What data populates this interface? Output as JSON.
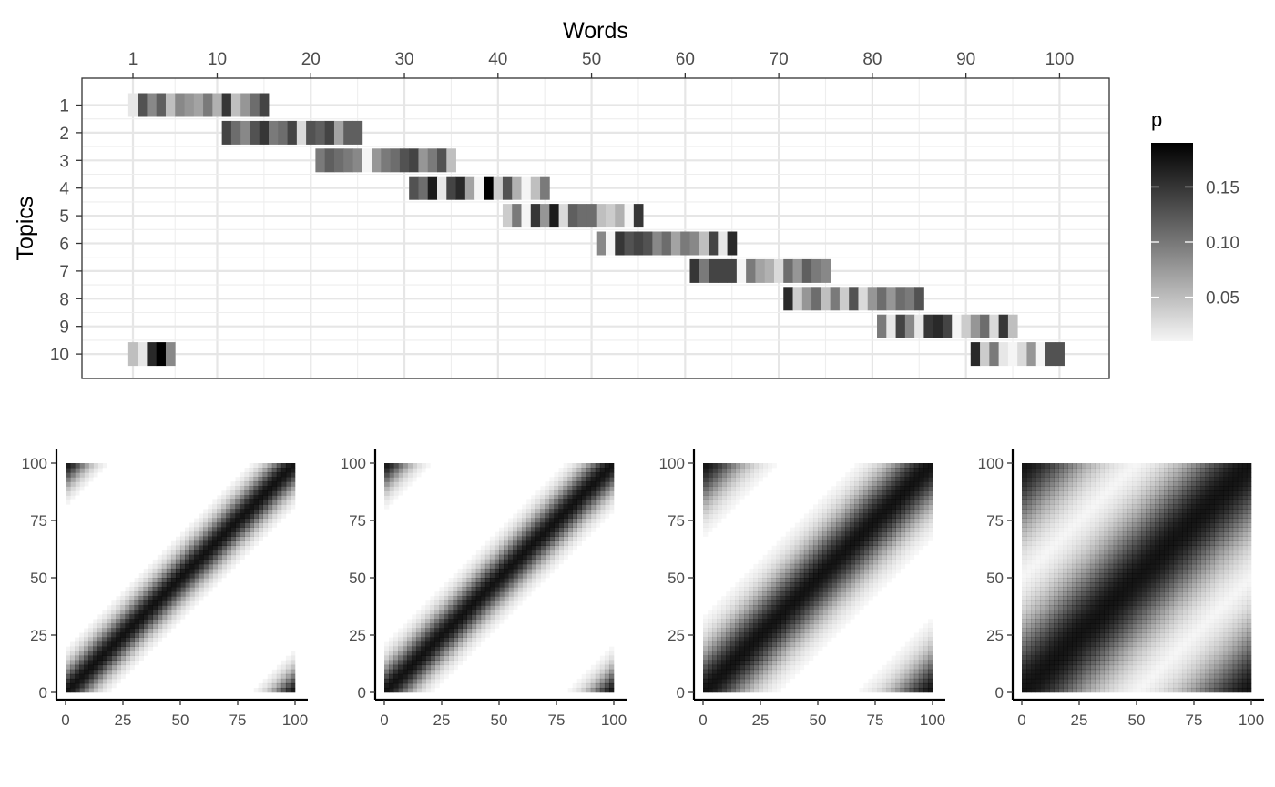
{
  "chart_data": [
    {
      "type": "heatmap",
      "xlabel": "Words",
      "ylabel": "Topics",
      "x_ticks": [
        1,
        10,
        20,
        30,
        40,
        50,
        60,
        70,
        80,
        90,
        100
      ],
      "y_ticks": [
        1,
        2,
        3,
        4,
        5,
        6,
        7,
        8,
        9,
        10
      ],
      "xlim": [
        1,
        100
      ],
      "ylim": [
        1,
        10
      ],
      "grid": true,
      "legend": {
        "title": "p",
        "ticks": [
          0.05,
          0.1,
          0.15
        ],
        "tick_labels": [
          "0.05",
          "0.10",
          "0.15"
        ],
        "range": [
          0.01,
          0.19
        ],
        "placement": "right",
        "color_low": "#f5f5f5",
        "color_high": "#000000"
      },
      "topics": [
        {
          "topic": 1,
          "words": [
            1,
            2,
            3,
            4,
            5,
            6,
            7,
            8,
            9,
            10,
            11,
            12,
            13,
            14,
            15
          ],
          "p": [
            0.02,
            0.13,
            0.09,
            0.12,
            0.05,
            0.09,
            0.08,
            0.07,
            0.1,
            0.06,
            0.15,
            0.05,
            0.08,
            0.11,
            0.14
          ]
        },
        {
          "topic": 2,
          "words": [
            11,
            12,
            13,
            14,
            15,
            16,
            17,
            18,
            19,
            20,
            21,
            22,
            23,
            24,
            25
          ],
          "p": [
            0.14,
            0.11,
            0.09,
            0.13,
            0.15,
            0.1,
            0.11,
            0.14,
            0.03,
            0.13,
            0.12,
            0.14,
            0.07,
            0.12,
            0.12
          ]
        },
        {
          "topic": 3,
          "words": [
            21,
            22,
            23,
            24,
            25,
            26,
            27,
            28,
            29,
            30,
            31,
            32,
            33,
            34,
            35
          ],
          "p": [
            0.1,
            0.12,
            0.11,
            0.1,
            0.09,
            0.01,
            0.08,
            0.1,
            0.11,
            0.13,
            0.14,
            0.08,
            0.1,
            0.13,
            0.05
          ]
        },
        {
          "topic": 4,
          "words": [
            31,
            32,
            33,
            34,
            35,
            36,
            37,
            38,
            39,
            40,
            41,
            42,
            43,
            44,
            45
          ],
          "p": [
            0.13,
            0.11,
            0.17,
            0.02,
            0.14,
            0.16,
            0.07,
            0.01,
            0.19,
            0.04,
            0.13,
            0.06,
            0.01,
            0.05,
            0.1
          ]
        },
        {
          "topic": 5,
          "words": [
            41,
            42,
            43,
            44,
            45,
            46,
            47,
            48,
            49,
            50,
            51,
            52,
            53,
            54,
            55
          ],
          "p": [
            0.04,
            0.1,
            0.01,
            0.15,
            0.08,
            0.17,
            0.03,
            0.12,
            0.11,
            0.11,
            0.05,
            0.04,
            0.06,
            0.01,
            0.15
          ]
        },
        {
          "topic": 6,
          "words": [
            51,
            52,
            53,
            54,
            55,
            56,
            57,
            58,
            59,
            60,
            61,
            62,
            63,
            64,
            65
          ],
          "p": [
            0.09,
            0.01,
            0.15,
            0.13,
            0.14,
            0.13,
            0.09,
            0.11,
            0.07,
            0.1,
            0.09,
            0.05,
            0.14,
            0.02,
            0.16
          ]
        },
        {
          "topic": 7,
          "words": [
            61,
            62,
            63,
            64,
            65,
            66,
            67,
            68,
            69,
            70,
            71,
            72,
            73,
            74,
            75
          ],
          "p": [
            0.15,
            0.1,
            0.14,
            0.14,
            0.14,
            0.01,
            0.1,
            0.07,
            0.06,
            0.03,
            0.11,
            0.08,
            0.12,
            0.1,
            0.09
          ]
        },
        {
          "topic": 8,
          "words": [
            71,
            72,
            73,
            74,
            75,
            76,
            77,
            78,
            79,
            80,
            81,
            82,
            83,
            84,
            85
          ],
          "p": [
            0.16,
            0.04,
            0.08,
            0.11,
            0.05,
            0.1,
            0.04,
            0.13,
            0.03,
            0.08,
            0.11,
            0.08,
            0.11,
            0.1,
            0.13
          ]
        },
        {
          "topic": 9,
          "words": [
            81,
            82,
            83,
            84,
            85,
            86,
            87,
            88,
            89,
            90,
            91,
            92,
            93,
            94,
            95
          ],
          "p": [
            0.1,
            0.02,
            0.14,
            0.09,
            0.02,
            0.15,
            0.16,
            0.14,
            0.01,
            0.04,
            0.08,
            0.11,
            0.03,
            0.15,
            0.05
          ]
        },
        {
          "topic": 10,
          "words": [
            1,
            2,
            3,
            4,
            5,
            91,
            92,
            93,
            94,
            95,
            96,
            97,
            98,
            99,
            100
          ],
          "p": [
            0.05,
            0.02,
            0.16,
            0.19,
            0.09,
            0.16,
            0.04,
            0.1,
            0.02,
            0.01,
            0.03,
            0.08,
            0.01,
            0.13,
            0.13
          ]
        }
      ]
    },
    {
      "type": "heatmap",
      "panel": 1,
      "x_ticks": [
        0,
        25,
        50,
        75,
        100
      ],
      "y_ticks": [
        0,
        25,
        50,
        75,
        100
      ],
      "xlim": [
        0,
        100
      ],
      "ylim": [
        0,
        100
      ],
      "band_halfwidth": 13,
      "wrap": true
    },
    {
      "type": "heatmap",
      "panel": 2,
      "x_ticks": [
        0,
        25,
        50,
        75,
        100
      ],
      "y_ticks": [
        0,
        25,
        50,
        75,
        100
      ],
      "xlim": [
        0,
        100
      ],
      "ylim": [
        0,
        100
      ],
      "band_halfwidth": 14,
      "wrap": true
    },
    {
      "type": "heatmap",
      "panel": 3,
      "x_ticks": [
        0,
        25,
        50,
        75,
        100
      ],
      "y_ticks": [
        0,
        25,
        50,
        75,
        100
      ],
      "xlim": [
        0,
        100
      ],
      "ylim": [
        0,
        100
      ],
      "band_halfwidth": 22,
      "wrap": true
    },
    {
      "type": "heatmap",
      "panel": 4,
      "x_ticks": [
        0,
        25,
        50,
        75,
        100
      ],
      "y_ticks": [
        0,
        25,
        50,
        75,
        100
      ],
      "xlim": [
        0,
        100
      ],
      "ylim": [
        0,
        100
      ],
      "band_halfwidth": 35,
      "wrap": true
    }
  ]
}
